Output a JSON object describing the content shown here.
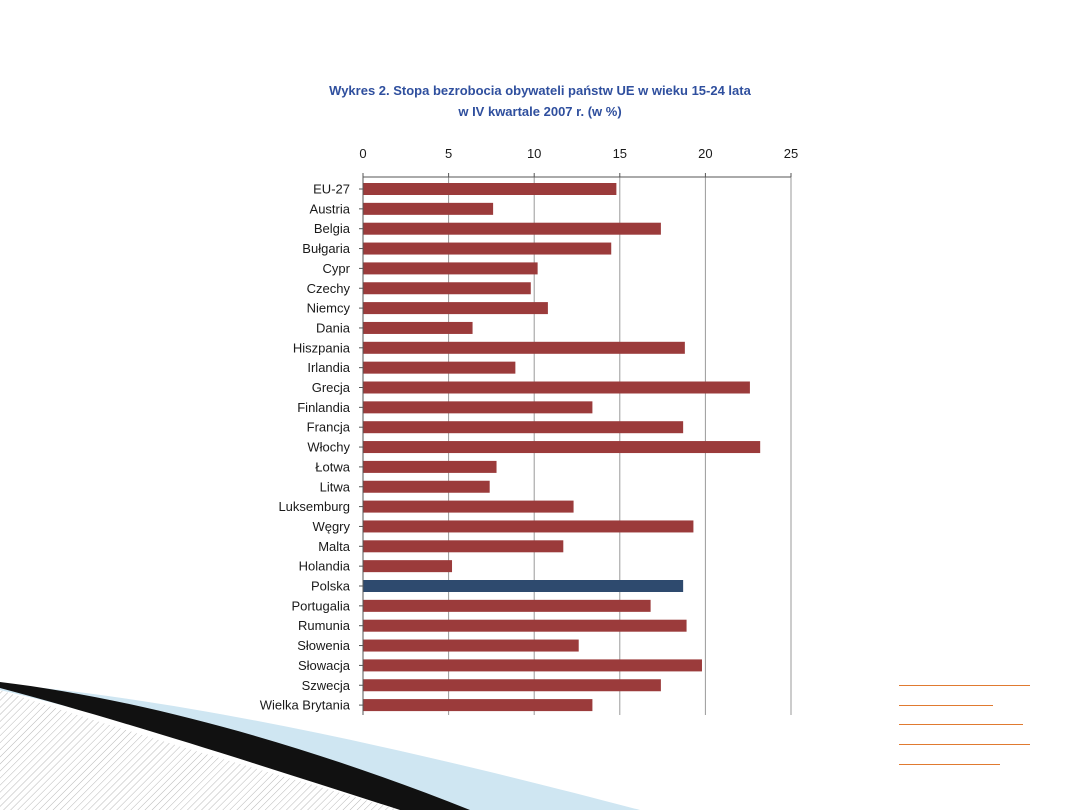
{
  "slide": {
    "accent_dark": "#111111",
    "accent_light": "#cfe6f2",
    "hatch_color": "#b8b8b8",
    "note_line_color": "#e07a30"
  },
  "chart_data": {
    "type": "bar",
    "orientation": "horizontal",
    "title": "Wykres 2. Stopa bezrobocia obywateli państw UE w wieku 15-24 lata",
    "subtitle": "w IV kwartale 2007 r. (w %)",
    "xlabel": "",
    "ylabel": "",
    "xlim": [
      0,
      25
    ],
    "xticks": [
      0,
      5,
      10,
      15,
      20,
      25
    ],
    "x_axis_position": "top",
    "grid": "vertical",
    "legend": "none",
    "bar_color": "#9b3b3b",
    "highlight_color": "#2e4a6e",
    "highlight_category": "Polska",
    "categories": [
      "EU-27",
      "Austria",
      "Belgia",
      "Bułgaria",
      "Cypr",
      "Czechy",
      "Niemcy",
      "Dania",
      "Hiszpania",
      "Irlandia",
      "Grecja",
      "Finlandia",
      "Francja",
      "Włochy",
      "Łotwa",
      "Litwa",
      "Luksemburg",
      "Węgry",
      "Malta",
      "Holandia",
      "Polska",
      "Portugalia",
      "Rumunia",
      "Słowenia",
      "Słowacja",
      "Szwecja",
      "Wielka Brytania"
    ],
    "values": [
      14.8,
      7.6,
      17.4,
      14.5,
      10.2,
      9.8,
      10.8,
      6.4,
      18.8,
      8.9,
      22.6,
      13.4,
      18.7,
      23.2,
      7.8,
      7.4,
      12.3,
      19.3,
      11.7,
      5.2,
      18.7,
      16.8,
      18.9,
      12.6,
      19.8,
      17.4,
      13.4
    ]
  }
}
